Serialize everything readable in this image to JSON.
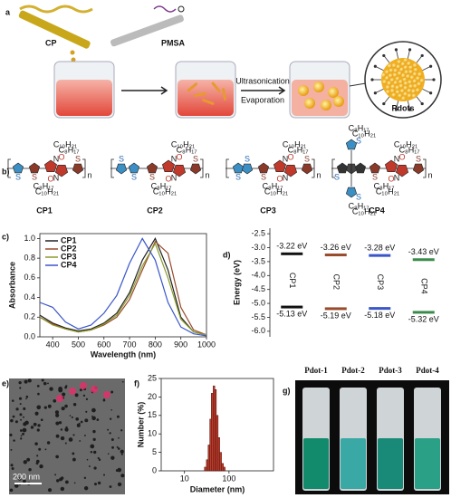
{
  "panel_labels": [
    "a",
    "b)",
    "c)",
    "d)",
    "e)",
    "f)",
    "g)"
  ],
  "scheme": {
    "syringe_1": "CP",
    "syringe_2": "PMSA",
    "step_top": "Ultrasonication",
    "step_bottom": "Evaporation",
    "product": "Pdots"
  },
  "structures": {
    "labels": [
      "CP1",
      "CP2",
      "CP3",
      "CP4"
    ],
    "atoms": {
      "S": "S",
      "N": "N",
      "O": "O",
      "n": "n",
      "c10": "C₁₀H₂₁",
      "c8": "C₈H₁₇"
    }
  },
  "chart_data": [
    {
      "type": "line",
      "xlabel": "Wavelength (nm)",
      "ylabel": "Absorbance",
      "x": [
        350,
        400,
        450,
        500,
        550,
        600,
        650,
        700,
        750,
        800,
        850,
        900,
        950,
        1000
      ],
      "series": [
        {
          "name": "CP1",
          "color": "#222222",
          "values": [
            0.22,
            0.14,
            0.09,
            0.06,
            0.08,
            0.14,
            0.24,
            0.45,
            0.78,
            1.0,
            0.68,
            0.2,
            0.05,
            0.02
          ]
        },
        {
          "name": "CP2",
          "color": "#9a4a2a",
          "values": [
            0.2,
            0.13,
            0.08,
            0.05,
            0.07,
            0.12,
            0.2,
            0.38,
            0.68,
            0.97,
            0.85,
            0.3,
            0.07,
            0.02
          ]
        },
        {
          "name": "CP3",
          "color": "#8a9a2a",
          "values": [
            0.2,
            0.12,
            0.08,
            0.05,
            0.07,
            0.13,
            0.22,
            0.42,
            0.72,
            0.95,
            0.6,
            0.18,
            0.05,
            0.02
          ]
        },
        {
          "name": "CP4",
          "color": "#3a56c8",
          "values": [
            0.35,
            0.3,
            0.15,
            0.08,
            0.12,
            0.24,
            0.42,
            0.75,
            1.0,
            0.78,
            0.35,
            0.1,
            0.03,
            0.01
          ]
        }
      ],
      "xlim": [
        350,
        1000
      ],
      "xticks": [
        400,
        500,
        600,
        700,
        800,
        900,
        1000
      ],
      "ylim": [
        0,
        1.05
      ],
      "yticks": [
        {
          "value": 0,
          "label": "0.0"
        },
        0.2,
        0.4,
        0.6,
        0.8,
        {
          "value": 1,
          "label": "1.0"
        }
      ],
      "legend": "upper left"
    },
    {
      "type": "energy-level",
      "ylabel": "Energy (eV)",
      "categories": [
        "CP1",
        "CP2",
        "CP3",
        "CP4"
      ],
      "colors": [
        "#111111",
        "#9a4a2a",
        "#3a56c8",
        "#3a8a4a"
      ],
      "levels": [
        {
          "values": [
            -3.22,
            -3.26,
            -3.28,
            -3.43
          ],
          "value_labels": [
            "-3.22 eV",
            "-3.26 eV",
            "-3.28 eV",
            "-3.43 eV"
          ]
        },
        {
          "values": [
            -5.13,
            -5.19,
            -5.18,
            -5.32
          ],
          "value_labels": [
            "-5.13 eV",
            "-5.19 eV",
            "-5.18 eV",
            "-5.32 eV"
          ]
        }
      ],
      "ylim": [
        -6.2,
        -2.3
      ],
      "yticks": [
        -2.5,
        {
          "value": -3,
          "label": "-3.0"
        },
        -3.5,
        {
          "value": -4,
          "label": "-4.0"
        },
        -4.5,
        {
          "value": -5,
          "label": "-5.0"
        },
        -5.5,
        {
          "value": -6,
          "label": "-6.0"
        }
      ]
    },
    {
      "type": "histogram",
      "xlabel": "Diameter (nm)",
      "ylabel": "Number (%)",
      "color": "#c0392b",
      "bins": [
        28,
        31,
        34,
        37,
        40,
        44,
        48,
        52,
        57,
        62,
        68,
        75,
        82
      ],
      "values": [
        1,
        3,
        7,
        14,
        21,
        23,
        22,
        15,
        9,
        5,
        2,
        1
      ],
      "xlog": true,
      "xlim": [
        3,
        1000
      ],
      "xticks": [
        10,
        100
      ],
      "ylim": [
        0,
        25
      ],
      "yticks": [
        0,
        5,
        10,
        15,
        20,
        25
      ]
    }
  ],
  "tem": {
    "scale_bar": "200 nm"
  },
  "photo": {
    "labels": [
      "Pdot-1",
      "Pdot-2",
      "Pdot-3",
      "Pdot-4"
    ]
  }
}
